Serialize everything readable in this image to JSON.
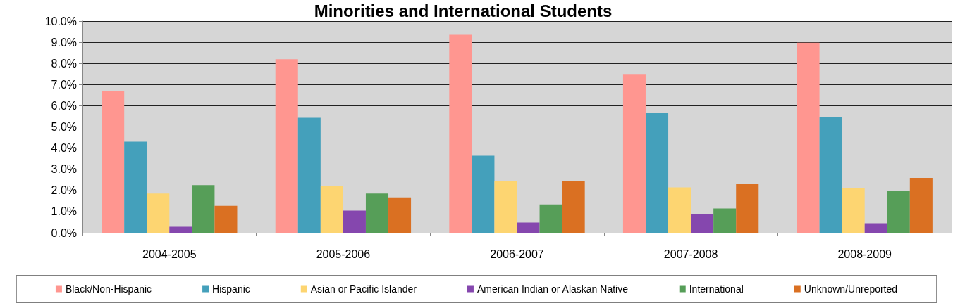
{
  "chart_data": {
    "type": "bar",
    "title": "Minorities and International Students",
    "categories": [
      "2004-2005",
      "2005-2006",
      "2006-2007",
      "2007-2008",
      "2008-2009"
    ],
    "series": [
      {
        "name": "Black/Non-Hispanic",
        "color": "#ff9690",
        "values": [
          6.7,
          8.2,
          9.35,
          7.5,
          8.98
        ]
      },
      {
        "name": "Hispanic",
        "color": "#44a0bb",
        "values": [
          4.3,
          5.43,
          3.64,
          5.68,
          5.48
        ]
      },
      {
        "name": "Asian or Pacific Islander",
        "color": "#fdd571",
        "values": [
          1.85,
          2.2,
          2.43,
          2.14,
          2.1
        ]
      },
      {
        "name": "American Indian or Alaskan Native",
        "color": "#8547ae",
        "values": [
          0.28,
          1.05,
          0.48,
          0.88,
          0.45
        ]
      },
      {
        "name": "International",
        "color": "#569e58",
        "values": [
          2.25,
          1.85,
          1.34,
          1.15,
          1.98
        ]
      },
      {
        "name": "Unknown/Unreported",
        "color": "#da7022",
        "values": [
          1.27,
          1.67,
          2.43,
          2.3,
          2.59
        ]
      }
    ],
    "ylim": [
      0,
      10
    ],
    "yticks": [
      {
        "value": 0,
        "label": "0.0%"
      },
      {
        "value": 1,
        "label": "1.0%"
      },
      {
        "value": 2,
        "label": "2.0%"
      },
      {
        "value": 3,
        "label": "3.0%"
      },
      {
        "value": 4,
        "label": "4.0%"
      },
      {
        "value": 5,
        "label": "5.0%"
      },
      {
        "value": 6,
        "label": "6.0%"
      },
      {
        "value": 7,
        "label": "7.0%"
      },
      {
        "value": 8,
        "label": "8.0%"
      },
      {
        "value": 9,
        "label": "9.0%"
      },
      {
        "value": 10,
        "label": "10.0%"
      }
    ],
    "grid": "y",
    "legend": "bottom"
  }
}
